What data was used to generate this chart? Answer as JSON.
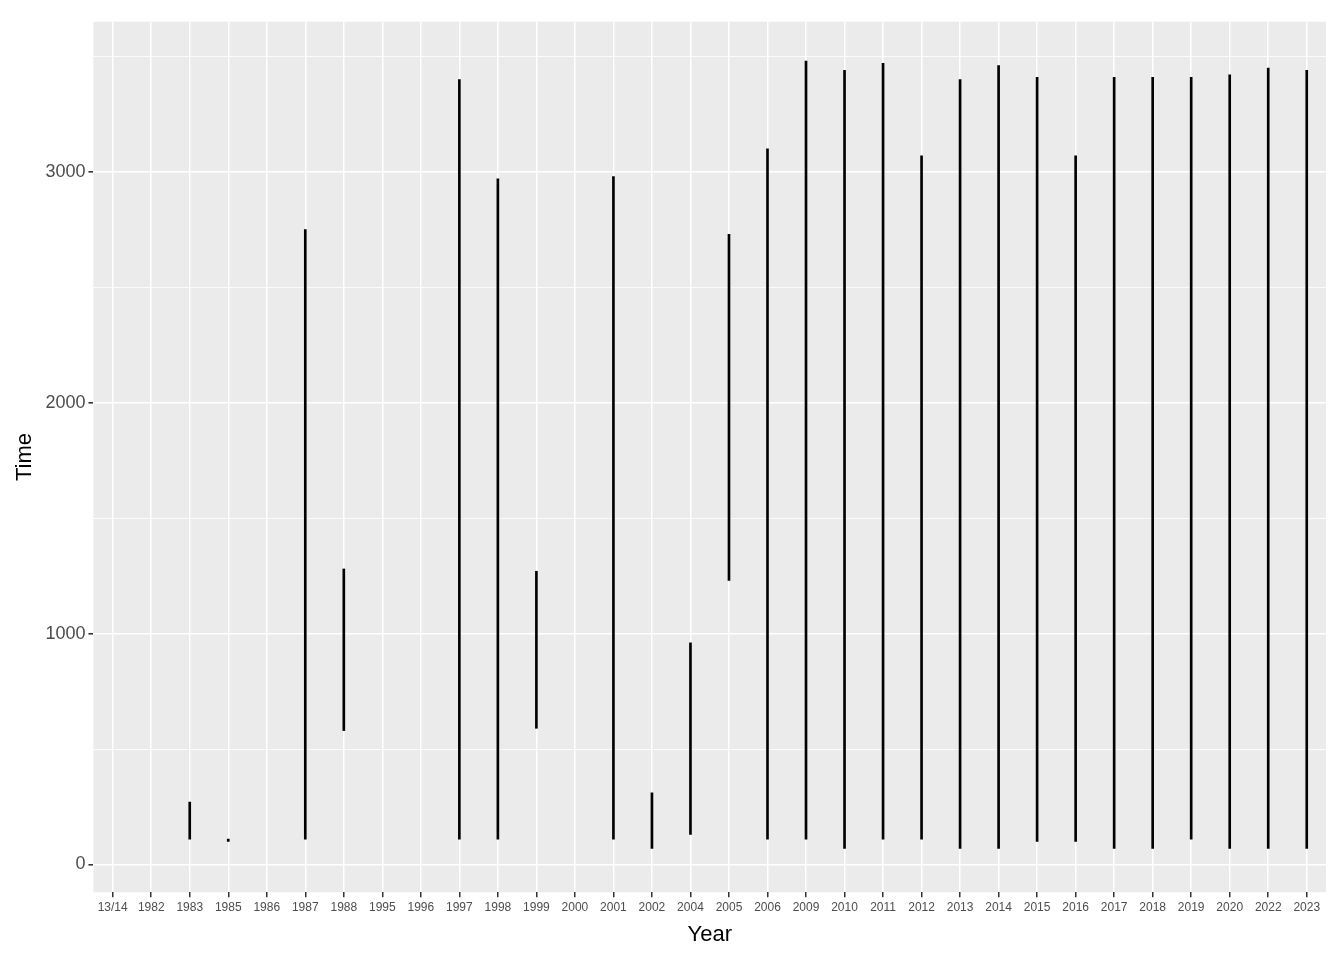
{
  "chart_data": {
    "type": "bar",
    "xlabel": "Year",
    "ylabel": "Time",
    "categories": [
      "13/14",
      "1982",
      "1983",
      "1985",
      "1986",
      "1987",
      "1988",
      "1995",
      "1996",
      "1997",
      "1998",
      "1999",
      "2000",
      "2001",
      "2002",
      "2004",
      "2005",
      "2006",
      "2009",
      "2010",
      "2011",
      "2012",
      "2013",
      "2014",
      "2015",
      "2016",
      "2017",
      "2018",
      "2019",
      "2020",
      "2022",
      "2023"
    ],
    "base": [
      null,
      null,
      110,
      100,
      null,
      110,
      580,
      null,
      null,
      110,
      110,
      590,
      null,
      110,
      70,
      130,
      1230,
      110,
      110,
      70,
      110,
      110,
      70,
      70,
      100,
      100,
      70,
      70,
      110,
      70,
      70,
      70
    ],
    "values": [
      null,
      null,
      160,
      10,
      null,
      2640,
      700,
      null,
      null,
      3290,
      2860,
      680,
      null,
      2870,
      240,
      830,
      1500,
      2990,
      3370,
      3370,
      3360,
      2960,
      3330,
      3390,
      3310,
      2970,
      3340,
      3340,
      3300,
      3350,
      3380,
      3370
    ],
    "color": "#000000",
    "ylim": [
      -120,
      3650
    ],
    "yticks": [
      0,
      {
        "value": 500,
        "label": null
      },
      1000,
      {
        "value": 1500,
        "label": null
      },
      2000,
      {
        "value": 2500,
        "label": null
      },
      3000,
      {
        "value": 3500,
        "label": null
      }
    ],
    "grid": true,
    "legend": false
  }
}
